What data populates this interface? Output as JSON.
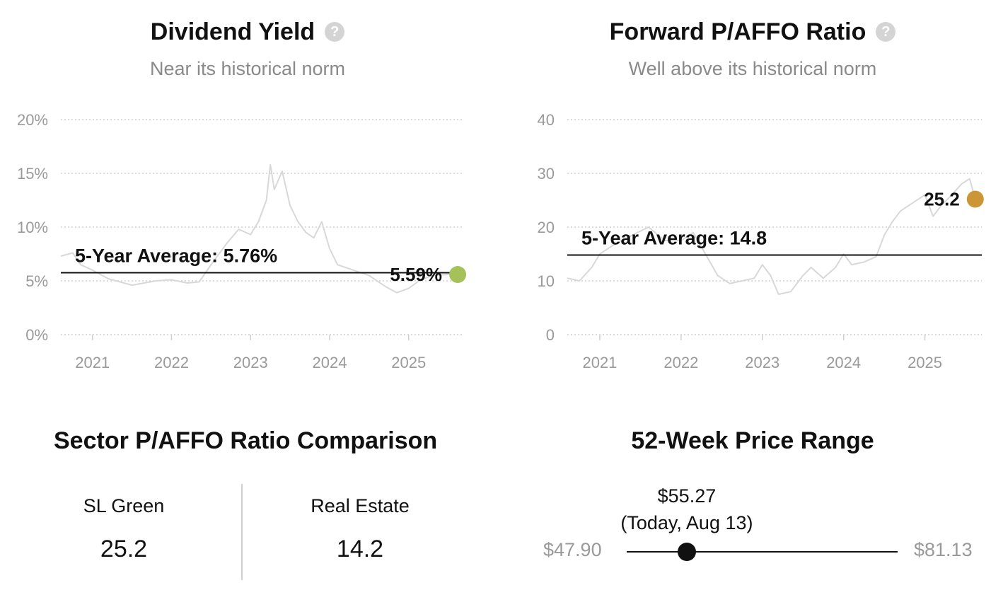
{
  "dividend_yield": {
    "title": "Dividend Yield",
    "subtitle": "Near its historical norm",
    "help_icon": "question-circle-icon",
    "average_label": "5-Year Average: 5.76%",
    "current_label": "5.59%",
    "marker_color": "#a6c15a"
  },
  "paffo": {
    "title": "Forward P/AFFO Ratio",
    "subtitle": "Well above its historical norm",
    "help_icon": "question-circle-icon",
    "average_label": "5-Year Average: 14.8",
    "current_label": "25.2",
    "marker_color": "#cc9535"
  },
  "chart_data": [
    {
      "type": "line",
      "title": "Dividend Yield",
      "y_tick_labels": [
        "0%",
        "5%",
        "10%",
        "15%",
        "20%"
      ],
      "x_tick_labels": [
        "2021",
        "2022",
        "2023",
        "2024",
        "2025"
      ],
      "ylim": [
        0,
        20
      ],
      "xlim": [
        2020.6,
        2025.7
      ],
      "grid": true,
      "series": [
        {
          "x": [
            2020.6,
            2020.75,
            2020.85,
            2021.0,
            2021.2,
            2021.5,
            2021.8,
            2022.0,
            2022.2,
            2022.35,
            2022.5,
            2022.7,
            2022.85,
            2023.0,
            2023.1,
            2023.2,
            2023.25,
            2023.3,
            2023.4,
            2023.5,
            2023.6,
            2023.7,
            2023.8,
            2023.9,
            2024.0,
            2024.1,
            2024.3,
            2024.5,
            2024.7,
            2024.85,
            2025.0,
            2025.15,
            2025.3,
            2025.5,
            2025.62
          ],
          "y": [
            7.3,
            7.6,
            6.5,
            6.0,
            5.2,
            4.6,
            5.0,
            5.1,
            4.8,
            4.9,
            6.5,
            8.5,
            9.8,
            9.3,
            10.5,
            12.5,
            15.8,
            13.5,
            15.2,
            12.0,
            10.5,
            9.5,
            9.0,
            10.5,
            8.0,
            6.5,
            6.0,
            5.5,
            4.5,
            3.9,
            4.3,
            5.1,
            5.5,
            5.6,
            5.59
          ]
        }
      ],
      "reference_line": {
        "label": "5-Year Average: 5.76%",
        "y": 5.76
      },
      "last_value": 5.59
    },
    {
      "type": "line",
      "title": "Forward P/AFFO Ratio",
      "y_tick_labels": [
        "0",
        "10",
        "20",
        "30",
        "40"
      ],
      "x_tick_labels": [
        "2021",
        "2022",
        "2023",
        "2024",
        "2025"
      ],
      "ylim": [
        0,
        40
      ],
      "xlim": [
        2020.6,
        2025.7
      ],
      "grid": true,
      "series": [
        {
          "x": [
            2020.6,
            2020.75,
            2020.9,
            2021.0,
            2021.2,
            2021.4,
            2021.6,
            2021.8,
            2022.0,
            2022.15,
            2022.3,
            2022.45,
            2022.6,
            2022.75,
            2022.9,
            2023.0,
            2023.1,
            2023.2,
            2023.35,
            2023.5,
            2023.6,
            2023.75,
            2023.9,
            2024.0,
            2024.1,
            2024.25,
            2024.4,
            2024.5,
            2024.6,
            2024.7,
            2024.85,
            2025.0,
            2025.1,
            2025.2,
            2025.3,
            2025.45,
            2025.55,
            2025.62
          ],
          "y": [
            10.5,
            10.0,
            12.5,
            15.0,
            17.0,
            18.5,
            20.0,
            17.5,
            17.5,
            19.0,
            15.0,
            11.0,
            9.5,
            10.0,
            10.5,
            13.0,
            11.0,
            7.5,
            8.0,
            11.0,
            12.5,
            10.5,
            12.5,
            15.0,
            13.0,
            13.5,
            14.5,
            18.5,
            21.0,
            23.0,
            24.5,
            26.0,
            22.0,
            24.0,
            25.5,
            28.0,
            29.0,
            25.2
          ]
        }
      ],
      "reference_line": {
        "label": "5-Year Average: 14.8",
        "y": 14.8
      },
      "last_value": 25.2
    }
  ],
  "sector": {
    "title": "Sector P/AFFO Ratio Comparison",
    "columns": [
      {
        "name": "SL Green",
        "value": "25.2"
      },
      {
        "name": "Real Estate",
        "value": "14.2"
      }
    ]
  },
  "range_52w": {
    "title": "52-Week Price Range",
    "current_price": "$55.27",
    "current_note": "(Today, Aug 13)",
    "low": "$47.90",
    "high": "$81.13",
    "low_value": 47.9,
    "high_value": 81.13,
    "current_value": 55.27
  }
}
